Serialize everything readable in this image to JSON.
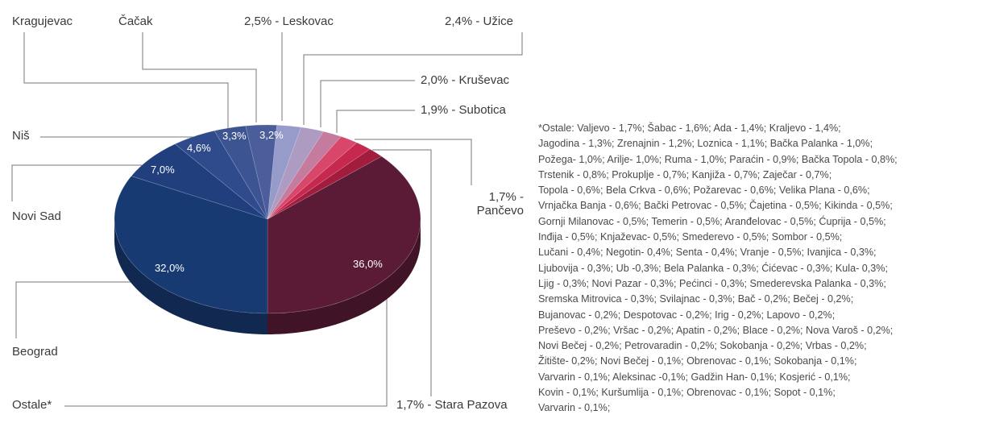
{
  "chart_data": {
    "type": "pie",
    "categories": [
      "Ostale*",
      "1,7% - Stara Pazova",
      "1,7% - Pančevo",
      "1,9% - Subotica",
      "2,0% - Kruševac",
      "2,4% - Užice",
      "2,5% - Leskovac",
      "Čačak",
      "Kragujevac",
      "Niš",
      "Novi Sad",
      "Beograd"
    ],
    "values": [
      36.0,
      1.7,
      1.7,
      1.9,
      2.0,
      2.4,
      2.5,
      3.2,
      3.3,
      4.6,
      7.0,
      32.0
    ],
    "value_labels": [
      "36,0%",
      null,
      null,
      null,
      null,
      null,
      null,
      "3,2%",
      "3,3%",
      "4,6%",
      "7,0%",
      "32,0%"
    ],
    "colors": [
      "#5b1b37",
      "#a21c3e",
      "#c6294d",
      "#d8466a",
      "#c47b9d",
      "#ad9bc2",
      "#979bc9",
      "#4c5d9c",
      "#3d5492",
      "#2f4b8b",
      "#213f7d",
      "#183a72"
    ],
    "note": [
      "*Ostale: Valjevo - 1,7%; Šabac - 1,6%; Ada - 1,4%; Kraljevo - 1,4%;",
      "Jagodina - 1,3%; Zrenajnin - 1,2%; Loznica - 1,1%; Bačka Palanka - 1,0%;",
      "Požega- 1,0%; Arilje- 1,0%; Ruma - 1,0%; Paraćin - 0,9%; Bačka Topola - 0,8%;",
      "Trstenik - 0,8%; Prokuplje - 0,7%; Kanjiža - 0,7%; Zaječar - 0,7%;",
      "Topola - 0,6%; Bela Crkva - 0,6%; Požarevac - 0,6%; Velika Plana - 0,6%;",
      "Vrnjačka Banja - 0,6%; Bački Petrovac - 0,5%; Čajetina - 0,5%; Kikinda - 0,5%;",
      "Gornji Milanovac - 0,5%; Temerin - 0,5%; Aranđelovac - 0,5%; Ćuprija - 0,5%;",
      "Inđija - 0,5%; Knjaževac- 0,5%; Smederevo - 0,5%; Sombor - 0,5%;",
      "Lučani - 0,4%; Negotin- 0,4%; Senta - 0,4%; Vranje - 0,5%; Ivanjica - 0,3%;",
      "Ljubovija - 0,3%; Ub -0,3%; Bela Palanka - 0,3%; Ćićevac - 0,3%; Kula- 0,3%;",
      "Ljig - 0,3%; Novi Pazar - 0,3%; Pećinci - 0,3%; Smederevska Palanka - 0,3%;",
      "Sremska Mitrovica - 0,3%; Svilajnac - 0,3%; Bač - 0,2%; Bečej - 0,2%;",
      "Bujanovac - 0,2%; Despotovac - 0,2%; Irig - 0,2%; Lapovo - 0,2%;",
      "Preševo - 0,2%; Vršac - 0,2%; Apatin - 0,2%; Blace - 0,2%; Nova Varoš - 0,2%;",
      "Novi Bečej - 0,2%; Petrovaradin - 0,2%; Sokobanja - 0,2%; Vrbas - 0,2%;",
      "Žitište- 0,2%; Novi Bečej - 0,1%; Obrenovac - 0,1%; Sokobanja - 0,1%;",
      "Varvarin - 0,1%; Aleksinac -0,1%; Gadžin Han- 0,1%; Kosjerić - 0,1%;",
      "Kovin - 0,1%; Kuršumlija - 0,1%; Obrenovac - 0,1%; Sopot - 0,1%;",
      "Varvarin - 0,1%;"
    ]
  }
}
